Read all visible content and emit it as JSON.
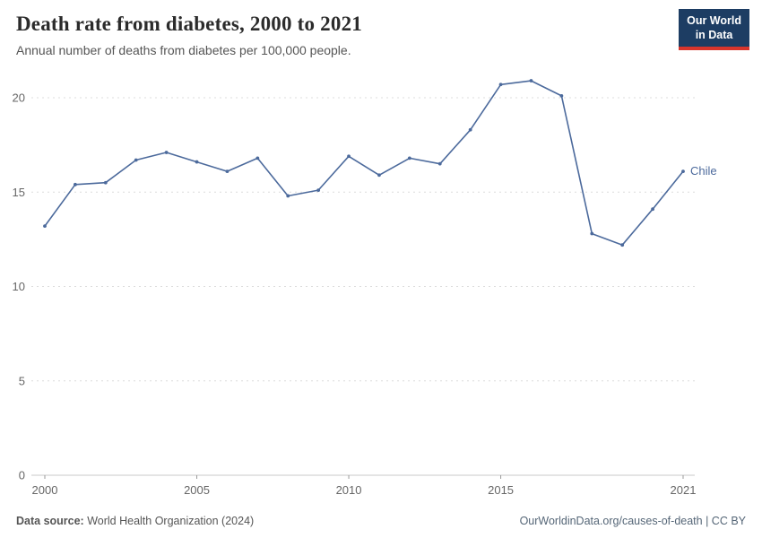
{
  "header": {
    "title": "Death rate from diabetes, 2000 to 2021",
    "subtitle": "Annual number of deaths from diabetes per 100,000 people."
  },
  "logo": {
    "line1": "Our World",
    "line2": "in Data",
    "bg_color": "#1d3d63",
    "accent_color": "#d8352c"
  },
  "chart_data": {
    "type": "line",
    "title": "Death rate from diabetes, 2000 to 2021",
    "series": [
      {
        "name": "Chile",
        "color": "#4c6a9c",
        "x": [
          2000,
          2001,
          2002,
          2003,
          2004,
          2005,
          2006,
          2007,
          2008,
          2009,
          2010,
          2011,
          2012,
          2013,
          2014,
          2015,
          2016,
          2017,
          2018,
          2019,
          2020,
          2021
        ],
        "values": [
          13.2,
          15.4,
          15.5,
          16.7,
          17.1,
          16.6,
          16.1,
          16.8,
          14.8,
          15.1,
          16.9,
          15.9,
          16.8,
          16.5,
          18.3,
          20.7,
          20.9,
          20.1,
          12.8,
          12.2,
          14.1,
          16.1
        ]
      }
    ],
    "xlabel": "",
    "ylabel": "",
    "xlim": [
      2000,
      2021
    ],
    "ylim": [
      0,
      20
    ],
    "yticks": [
      0,
      5,
      10,
      15,
      20
    ],
    "xticks": [
      2000,
      2005,
      2010,
      2015,
      2021
    ],
    "grid": "horizontal-dashed",
    "legend_position": "end-of-line"
  },
  "footer": {
    "source_label": "Data source:",
    "source_text": " World Health Organization (2024)",
    "right_text": "OurWorldinData.org/causes-of-death | CC BY"
  }
}
